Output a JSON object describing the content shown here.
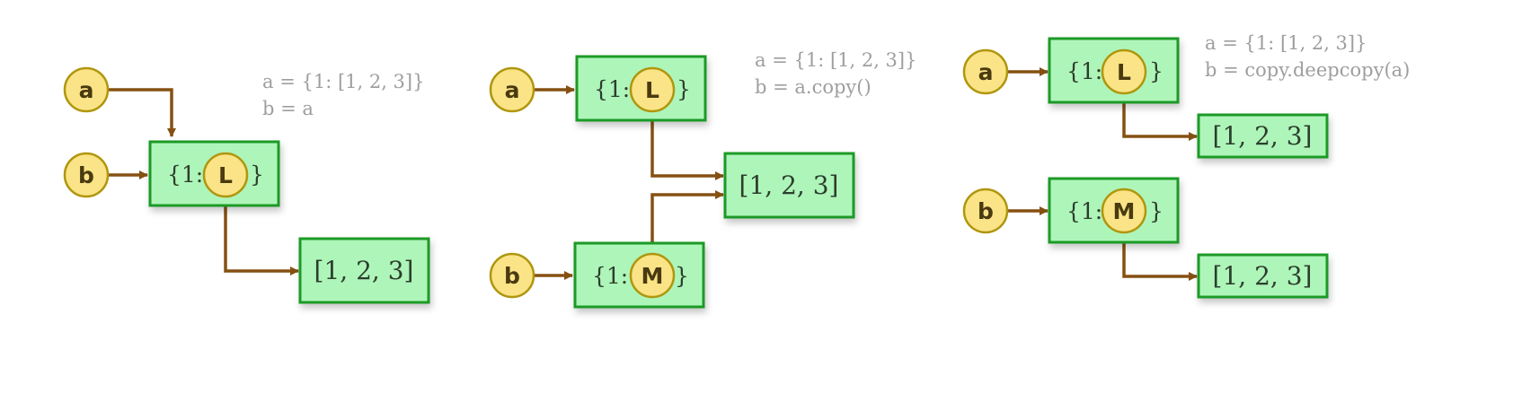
{
  "panels": [
    {
      "code": [
        "a = {1: [1, 2, 3]}",
        "b = a"
      ],
      "variables": [
        "a",
        "b"
      ],
      "dicts": [
        {
          "prefix": "{1:",
          "ref": "L",
          "suffix": "}"
        }
      ],
      "lists": [
        "[1, 2, 3]"
      ]
    },
    {
      "code": [
        "a = {1: [1, 2, 3]}",
        "b = a.copy()"
      ],
      "variables": [
        "a",
        "b"
      ],
      "dicts": [
        {
          "prefix": "{1:",
          "ref": "L",
          "suffix": "}"
        },
        {
          "prefix": "{1:",
          "ref": "M",
          "suffix": "}"
        }
      ],
      "lists": [
        "[1, 2, 3]"
      ]
    },
    {
      "code": [
        "a = {1: [1, 2, 3]}",
        "b = copy.deepcopy(a)"
      ],
      "variables": [
        "a",
        "b"
      ],
      "dicts": [
        {
          "prefix": "{1:",
          "ref": "L",
          "suffix": "}"
        },
        {
          "prefix": "{1:",
          "ref": "M",
          "suffix": "}"
        }
      ],
      "lists": [
        "[1, 2, 3]",
        "[1, 2, 3]"
      ]
    }
  ],
  "colors": {
    "box_fill": "#aef5ba",
    "box_stroke": "#1c9a28",
    "circle_fill": "#fae487",
    "circle_stroke": "#b0960e",
    "arrow": "#855012",
    "code_text": "#9e9e9e"
  }
}
